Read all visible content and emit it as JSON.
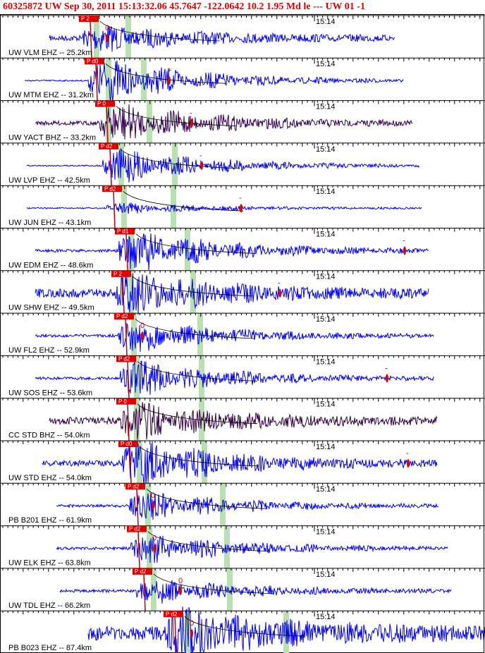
{
  "header": {
    "title": "60325872 UW Sep 30, 2011 15:13:32.06    45.7647 -122.0642 10.2 1.95 Md le --- UW 01  -1"
  },
  "traces": [
    {
      "label": "UW VLM EHZ -- 25.2km",
      "pick": "P 2",
      "time": "15:14",
      "marker": "0"
    },
    {
      "label": "UW MTM EHZ -- 31.2km",
      "pick": "P d0",
      "time": "15:14",
      "marker": "+"
    },
    {
      "label": "UW YACT BHZ -- 33.2km",
      "pick": "P 0",
      "time": "15:14",
      "marker": "-"
    },
    {
      "label": "UW LVP EHZ -- 42.5km",
      "pick": "P d2",
      "time": "15:14",
      "marker": "-"
    },
    {
      "label": "UW JUN EHZ -- 43.1km",
      "pick": "P d2",
      "time": "15:14",
      "marker": "-"
    },
    {
      "label": "UW EDM EHZ -- 48.6km",
      "pick": "P d1",
      "time": "15:14",
      "marker": "-"
    },
    {
      "label": "UW SHW EHZ -- 49.5km",
      "pick": "P 2",
      "time": "15:14",
      "marker": "-"
    },
    {
      "label": "UW FL2 EHZ -- 52.9km",
      "pick": "P d2",
      "time": "15:14",
      "marker": "0"
    },
    {
      "label": "UW SOS EHZ -- 53.6km",
      "pick": "P d2",
      "time": "15:14",
      "marker": "-"
    },
    {
      "label": "CC STD BHZ -- 54.0km",
      "pick": "P 0",
      "time": "15:14"
    },
    {
      "label": "UW STD EHZ -- 54.0km",
      "pick": "P d0",
      "time": "15:14",
      "marker": "-"
    },
    {
      "label": "PB B201 EHZ -- 61.9km",
      "pick": "P d2",
      "time": "15:14",
      "marker": "0"
    },
    {
      "label": "UW ELK EHZ -- 63.8km",
      "pick": "P d2",
      "time": "15:14",
      "marker": "0"
    },
    {
      "label": "UW TDL EHZ -- 66.2km",
      "pick": "P d2",
      "time": "15:14",
      "marker": "0"
    },
    {
      "label": "PB B023 EHZ -- 87.4km",
      "pick": "P d2",
      "time": "15:14",
      "marker": "0"
    }
  ]
}
